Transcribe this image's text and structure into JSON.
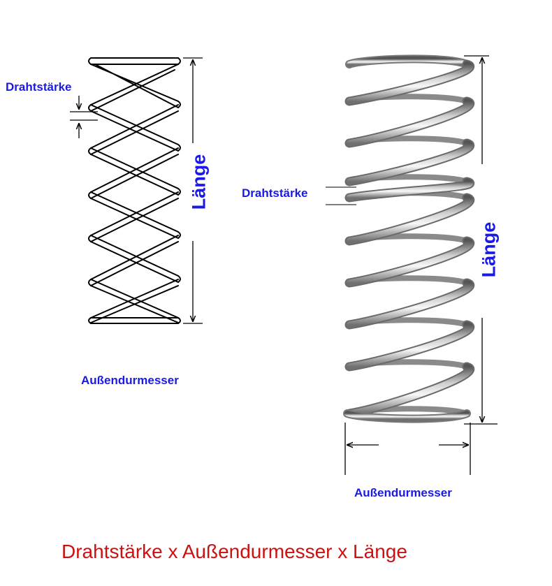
{
  "left_diagram": {
    "wire_label": "Drahtstärke",
    "length_label": "Länge",
    "diameter_label": "Außendurmesser"
  },
  "right_diagram": {
    "wire_label": "Drahtstärke",
    "length_label": "Länge",
    "diameter_label": "Außendurmesser"
  },
  "caption": "Drahtstärke x Außendurmesser x Länge",
  "colors": {
    "label_blue": "#1a1ae6",
    "caption_red": "#cc1111",
    "line_black": "#000000",
    "steel_dark": "#6e6e6e",
    "steel_light": "#e8e8e8"
  }
}
